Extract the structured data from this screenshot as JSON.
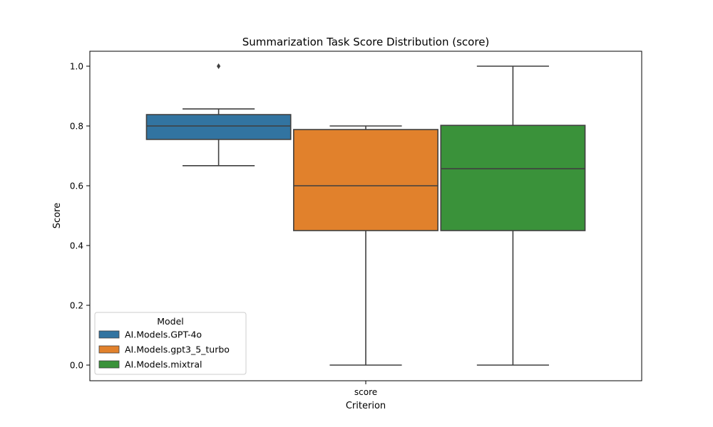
{
  "chart_data": {
    "type": "box",
    "title": "Summarization Task Score Distribution (score)",
    "xlabel": "Criterion",
    "ylabel": "Score",
    "categories": [
      "score"
    ],
    "ylim": [
      -0.05,
      1.05
    ],
    "yticks": [
      0.0,
      0.2,
      0.4,
      0.6,
      0.8,
      1.0
    ],
    "ytick_labels": [
      "0.0",
      "0.2",
      "0.4",
      "0.6",
      "0.8",
      "1.0"
    ],
    "grid": false,
    "legend": {
      "title": "Model",
      "placement": "lower-left"
    },
    "series": [
      {
        "name": "AI.Models.GPT-4o",
        "color": "#3274a1",
        "whisker_low": 0.667,
        "q1": 0.755,
        "median": 0.8,
        "q3": 0.838,
        "whisker_high": 0.857,
        "outliers": [
          1.0
        ]
      },
      {
        "name": "AI.Models.gpt3_5_turbo",
        "color": "#e1812c",
        "whisker_low": 0.0,
        "q1": 0.45,
        "median": 0.6,
        "q3": 0.788,
        "whisker_high": 0.8,
        "outliers": []
      },
      {
        "name": "AI.Models.mixtral",
        "color": "#3a923a",
        "whisker_low": 0.0,
        "q1": 0.45,
        "median": 0.657,
        "q3": 0.802,
        "whisker_high": 1.0,
        "outliers": []
      }
    ]
  }
}
